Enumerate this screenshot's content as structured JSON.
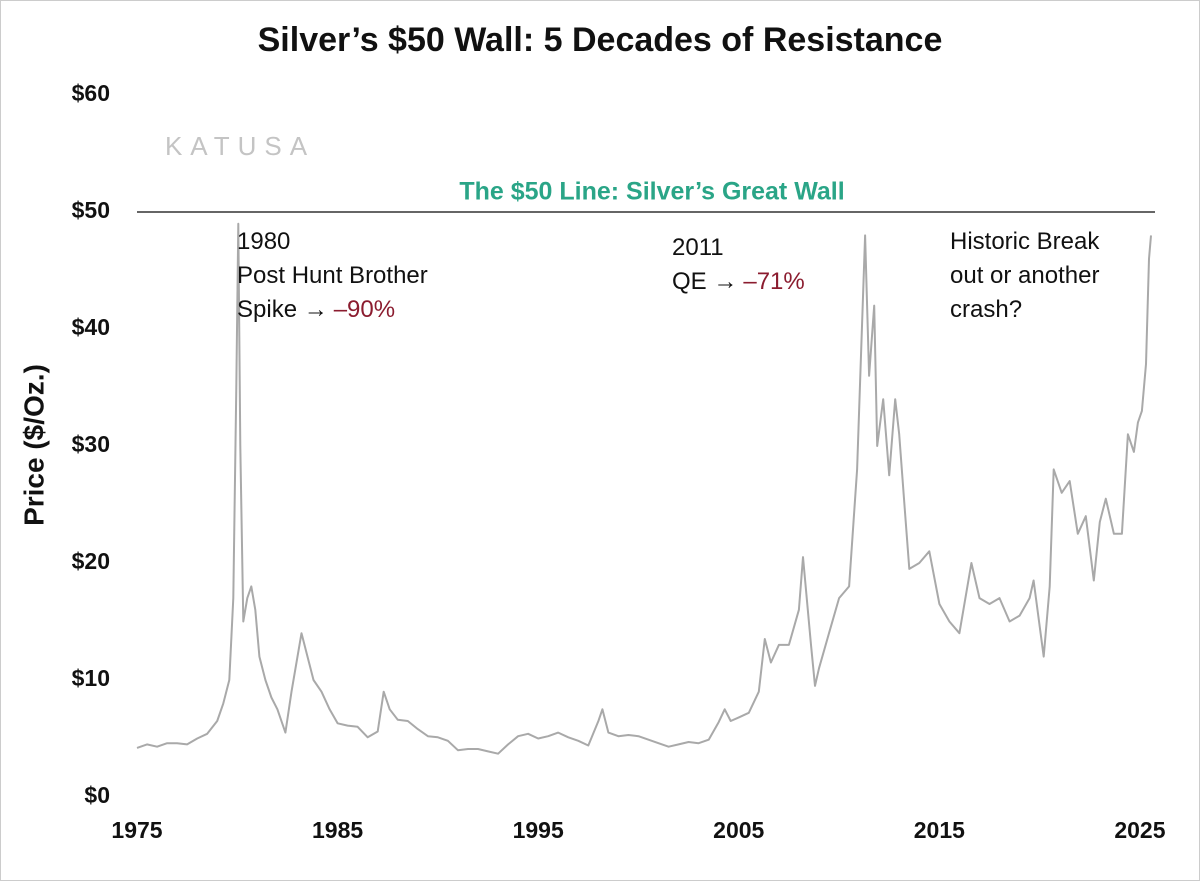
{
  "chart_data": {
    "type": "line",
    "title": "Silver’s $50 Wall: 5 Decades of Resistance",
    "y_label": "Price ($/Oz.)",
    "logo": "KATUSA",
    "color": "#a9a9a9",
    "xlim": [
      1975,
      2026
    ],
    "xticks": [
      1975,
      1985,
      1995,
      2005,
      2015,
      2025
    ],
    "ylim": [
      0,
      60
    ],
    "yticks": [
      {
        "value": 0,
        "label": "$0"
      },
      {
        "value": 10,
        "label": "$10"
      },
      {
        "value": 20,
        "label": "$20"
      },
      {
        "value": 30,
        "label": "$30"
      },
      {
        "value": 40,
        "label": "$40"
      },
      {
        "value": 50,
        "label": "$50"
      },
      {
        "value": 60,
        "label": "$60"
      }
    ],
    "reference_line": {
      "value": 50,
      "label": "The $50 Line: Silver’s Great Wall",
      "color": "#2aa587"
    },
    "annotations": [
      {
        "lines": [
          "1980",
          "Post Hunt Brother",
          "Spike →"
        ],
        "emphasis": "–90%"
      },
      {
        "lines": [
          "2011",
          "QE →"
        ],
        "emphasis": "–71%"
      },
      {
        "lines": [
          "Historic Break",
          "out or another",
          "crash?"
        ]
      }
    ],
    "x": [
      1975,
      1975.5,
      1976,
      1976.5,
      1977,
      1977.5,
      1978,
      1978.5,
      1979,
      1979.3,
      1979.6,
      1979.8,
      1979.95,
      1980.05,
      1980.15,
      1980.3,
      1980.5,
      1980.7,
      1980.9,
      1981.1,
      1981.4,
      1981.7,
      1982,
      1982.4,
      1982.7,
      1983,
      1983.2,
      1983.5,
      1983.8,
      1984.2,
      1984.6,
      1985,
      1985.5,
      1986,
      1986.5,
      1987,
      1987.3,
      1987.6,
      1988,
      1988.5,
      1989,
      1989.5,
      1990,
      1990.5,
      1991,
      1991.5,
      1992,
      1992.5,
      1993,
      1993.5,
      1994,
      1994.5,
      1995,
      1995.5,
      1996,
      1996.5,
      1997,
      1997.5,
      1998,
      1998.2,
      1998.5,
      1999,
      1999.5,
      2000,
      2000.5,
      2001,
      2001.5,
      2002,
      2002.5,
      2003,
      2003.5,
      2004,
      2004.3,
      2004.6,
      2005,
      2005.5,
      2006,
      2006.3,
      2006.6,
      2007,
      2007.5,
      2008,
      2008.2,
      2008.6,
      2008.8,
      2009,
      2009.5,
      2010,
      2010.5,
      2010.9,
      2011.3,
      2011.5,
      2011.75,
      2011.9,
      2012.2,
      2012.5,
      2012.8,
      2013,
      2013.3,
      2013.5,
      2014,
      2014.5,
      2015,
      2015.5,
      2016,
      2016.4,
      2016.6,
      2017,
      2017.5,
      2018,
      2018.5,
      2019,
      2019.5,
      2019.7,
      2020.2,
      2020.5,
      2020.7,
      2021.1,
      2021.5,
      2021.9,
      2022.3,
      2022.7,
      2023,
      2023.3,
      2023.7,
      2024.1,
      2024.4,
      2024.7,
      2024.9,
      2025.1,
      2025.3,
      2025.45,
      2025.55
    ],
    "values": [
      4.2,
      4.5,
      4.3,
      4.6,
      4.6,
      4.5,
      5.0,
      5.4,
      6.5,
      8,
      10,
      17,
      35,
      49,
      30,
      15,
      17,
      18,
      16,
      12,
      10,
      8.5,
      7.5,
      5.5,
      9,
      12,
      14,
      12,
      10,
      9,
      7.5,
      6.3,
      6.1,
      6,
      5.1,
      5.6,
      9,
      7.5,
      6.6,
      6.5,
      5.8,
      5.2,
      5.1,
      4.8,
      4.0,
      4.1,
      4.1,
      3.9,
      3.7,
      4.5,
      5.2,
      5.4,
      5.0,
      5.2,
      5.5,
      5.1,
      4.8,
      4.4,
      6.5,
      7.5,
      5.5,
      5.2,
      5.3,
      5.2,
      4.9,
      4.6,
      4.3,
      4.5,
      4.7,
      4.6,
      4.9,
      6.4,
      7.5,
      6.5,
      6.8,
      7.2,
      9,
      13.5,
      11.5,
      13,
      13,
      16,
      20.5,
      13,
      9.5,
      11,
      14,
      17,
      18,
      28,
      48,
      36,
      42,
      30,
      34,
      27.5,
      34,
      31,
      24,
      19.5,
      20,
      21,
      16.5,
      15,
      14,
      18,
      20,
      17,
      16.5,
      17,
      15,
      15.5,
      17,
      18.5,
      12,
      18,
      28,
      26,
      27,
      22.5,
      24,
      18.5,
      23.5,
      25.5,
      22.5,
      22.5,
      31,
      29.5,
      32,
      33,
      37,
      46,
      48
    ]
  }
}
